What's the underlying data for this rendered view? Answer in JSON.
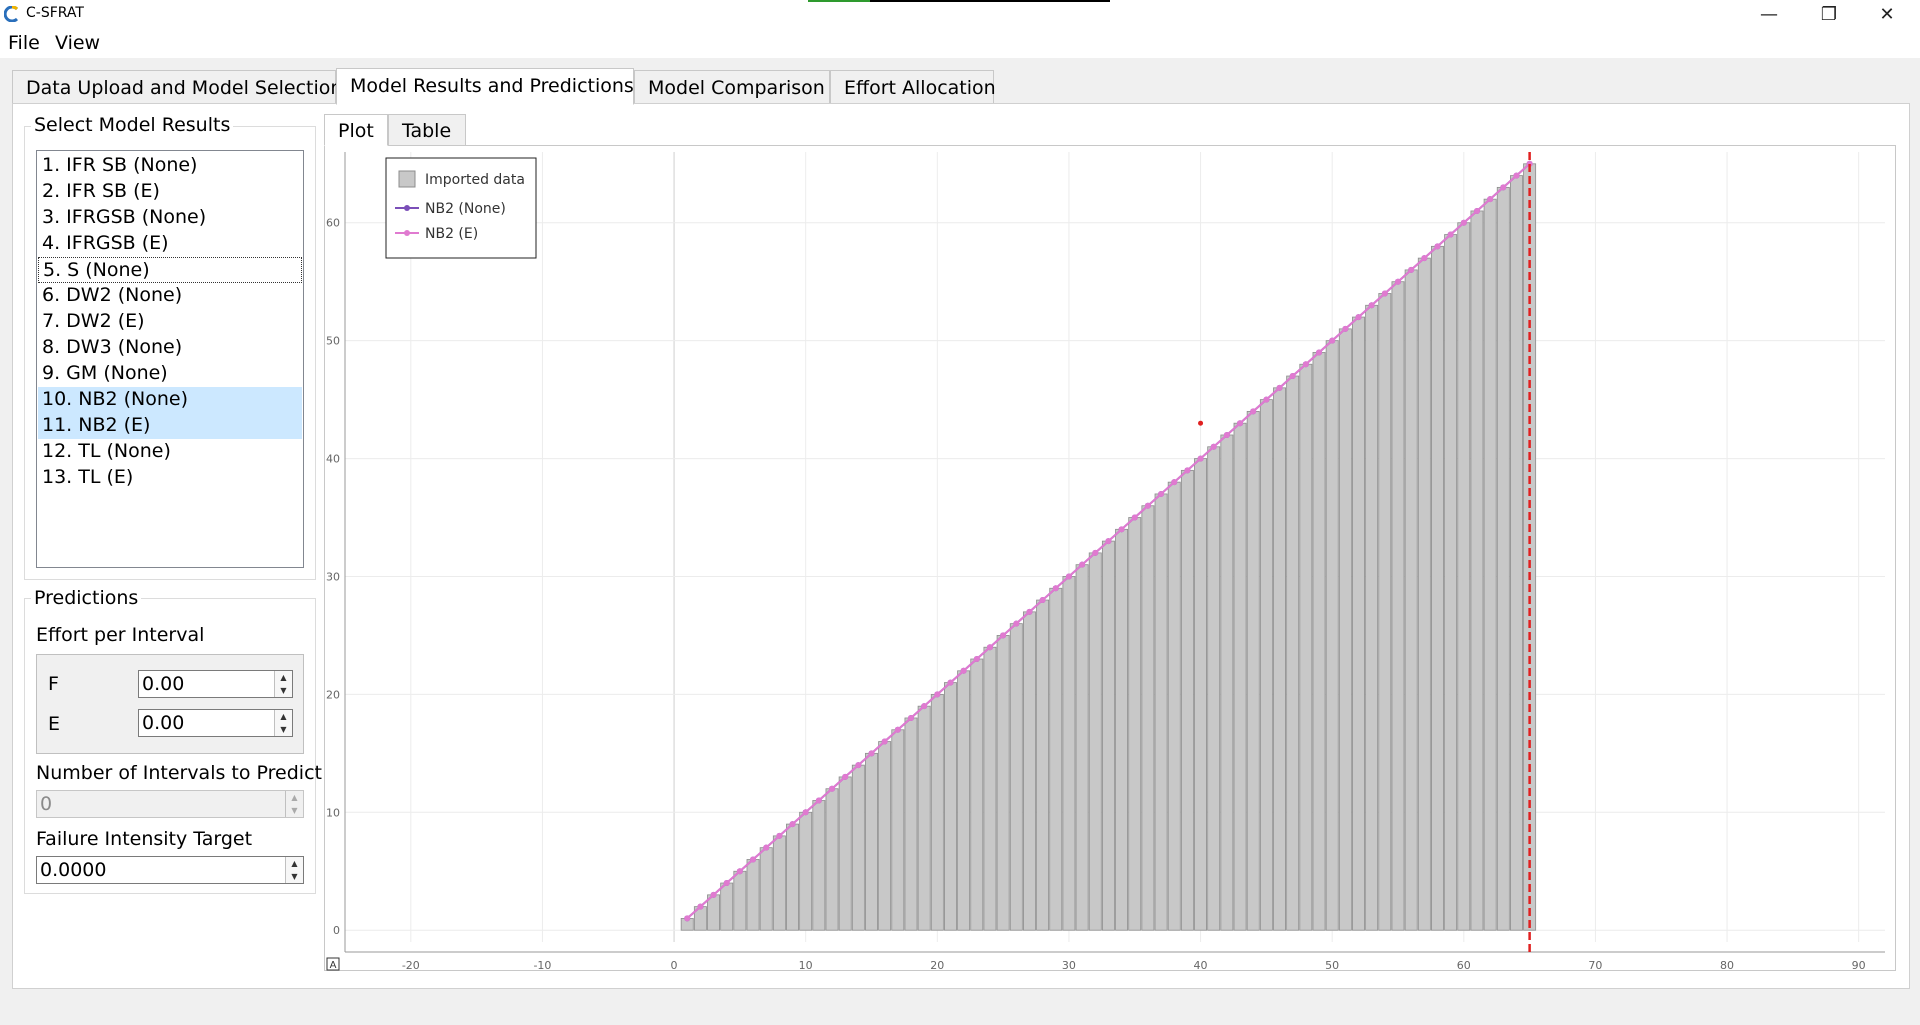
{
  "window": {
    "title": "C-SFRAT",
    "minimize_glyph": "—",
    "maximize_glyph": "❐",
    "close_glyph": "✕"
  },
  "menu": {
    "items": [
      "File",
      "View"
    ]
  },
  "tabs": [
    "Data Upload and Model Selection",
    "Model Results and Predictions",
    "Model Comparison",
    "Effort Allocation"
  ],
  "active_tab": 1,
  "model_results": {
    "title": "Select Model Results",
    "items": [
      "1. IFR SB (None)",
      "2. IFR SB (E)",
      "3. IFRGSB (None)",
      "4. IFRGSB (E)",
      "5. S (None)",
      "6. DW2 (None)",
      "7. DW2 (E)",
      "8. DW3 (None)",
      "9. GM (None)",
      "10. NB2 (None)",
      "11. NB2 (E)",
      "12. TL (None)",
      "13. TL (E)"
    ],
    "selected": [
      9,
      10
    ],
    "focused": 4
  },
  "predictions": {
    "title": "Predictions",
    "effort_label": "Effort per Interval",
    "effort_fields": [
      {
        "label": "F",
        "value": "0.00"
      },
      {
        "label": "E",
        "value": "0.00"
      }
    ],
    "intervals_label": "Number of Intervals to Predict",
    "intervals_value": "0",
    "intensity_label": "Failure Intensity Target",
    "intensity_value": "0.0000"
  },
  "subtabs": [
    "Plot",
    "Table"
  ],
  "active_subtab": 0,
  "plot_corner_icon": "A",
  "colors": {
    "bar_fill": "#c8c8c8",
    "bar_stroke": "#8c8c8c",
    "nb2_none": "#7b4fb8",
    "nb2_e": "#e07ad0",
    "end_line": "#e02020",
    "selection": "#cce8ff"
  },
  "chart_data": {
    "type": "bar",
    "title": "",
    "xlabel": "",
    "ylabel": "",
    "xlim": [
      -25,
      92
    ],
    "ylim": [
      -1,
      66
    ],
    "x_ticks": [
      -20,
      -10,
      0,
      10,
      20,
      30,
      40,
      50,
      60,
      70,
      80,
      90
    ],
    "y_ticks": [
      0,
      10,
      20,
      30,
      40,
      50,
      60
    ],
    "grid": true,
    "legend_position": "top-left",
    "bars": {
      "name": "Imported data",
      "x": [
        1,
        2,
        3,
        4,
        5,
        6,
        7,
        8,
        9,
        10,
        11,
        12,
        13,
        14,
        15,
        16,
        17,
        18,
        19,
        20,
        21,
        22,
        23,
        24,
        25,
        26,
        27,
        28,
        29,
        30,
        31,
        32,
        33,
        34,
        35,
        36,
        37,
        38,
        39,
        40,
        41,
        42,
        43,
        44,
        45,
        46,
        47,
        48,
        49,
        50,
        51,
        52,
        53,
        54,
        55,
        56,
        57,
        58,
        59,
        60,
        61,
        62,
        63,
        64,
        65
      ],
      "values": [
        1,
        2,
        3,
        4,
        5,
        6,
        7,
        8,
        9,
        10,
        11,
        12,
        13,
        14,
        15,
        16,
        17,
        18,
        19,
        20,
        21,
        22,
        23,
        24,
        25,
        26,
        27,
        28,
        29,
        30,
        31,
        32,
        33,
        34,
        35,
        36,
        37,
        38,
        39,
        40,
        41,
        42,
        43,
        44,
        45,
        46,
        47,
        48,
        49,
        50,
        51,
        52,
        53,
        54,
        55,
        56,
        57,
        58,
        59,
        60,
        61,
        62,
        63,
        64,
        65
      ]
    },
    "series": [
      {
        "name": "NB2 (None)",
        "x": [
          1,
          2,
          3,
          4,
          5,
          6,
          7,
          8,
          9,
          10,
          11,
          12,
          13,
          14,
          15,
          16,
          17,
          18,
          19,
          20,
          21,
          22,
          23,
          24,
          25,
          26,
          27,
          28,
          29,
          30,
          31,
          32,
          33,
          34,
          35,
          36,
          37,
          38,
          39,
          40,
          41,
          42,
          43,
          44,
          45,
          46,
          47,
          48,
          49,
          50,
          51,
          52,
          53,
          54,
          55,
          56,
          57,
          58,
          59,
          60,
          61,
          62,
          63,
          64,
          65
        ],
        "values": [
          1,
          2,
          3,
          4,
          5,
          6,
          7,
          8,
          9,
          10,
          11,
          12,
          13,
          14,
          15,
          16,
          17,
          18,
          19,
          20,
          21,
          22,
          23,
          24,
          25,
          26,
          27,
          28,
          29,
          30,
          31,
          32,
          33,
          34,
          35,
          36,
          37,
          38,
          39,
          40,
          41,
          42,
          43,
          44,
          45,
          46,
          47,
          48,
          49,
          50,
          51,
          52,
          53,
          54,
          55,
          56,
          57,
          58,
          59,
          60,
          61,
          62,
          63,
          64,
          65
        ]
      },
      {
        "name": "NB2 (E)",
        "x": [
          1,
          2,
          3,
          4,
          5,
          6,
          7,
          8,
          9,
          10,
          11,
          12,
          13,
          14,
          15,
          16,
          17,
          18,
          19,
          20,
          21,
          22,
          23,
          24,
          25,
          26,
          27,
          28,
          29,
          30,
          31,
          32,
          33,
          34,
          35,
          36,
          37,
          38,
          39,
          40,
          41,
          42,
          43,
          44,
          45,
          46,
          47,
          48,
          49,
          50,
          51,
          52,
          53,
          54,
          55,
          56,
          57,
          58,
          59,
          60,
          61,
          62,
          63,
          64,
          65
        ],
        "values": [
          1,
          2,
          3,
          4,
          5,
          6,
          7,
          8,
          9,
          10,
          11,
          12,
          13,
          14,
          15,
          16,
          17,
          18,
          19,
          20,
          21,
          22,
          23,
          24,
          25,
          26,
          27,
          28,
          29,
          30,
          31,
          32,
          33,
          34,
          35,
          36,
          37,
          38,
          39,
          40,
          41,
          42,
          43,
          44,
          45,
          46,
          47,
          48,
          49,
          50,
          51,
          52,
          53,
          54,
          55,
          56,
          57,
          58,
          59,
          60,
          61,
          62,
          63,
          64,
          65
        ]
      }
    ],
    "vertical_line_x": 65,
    "marker_point": {
      "x": 40,
      "y": 43
    }
  }
}
